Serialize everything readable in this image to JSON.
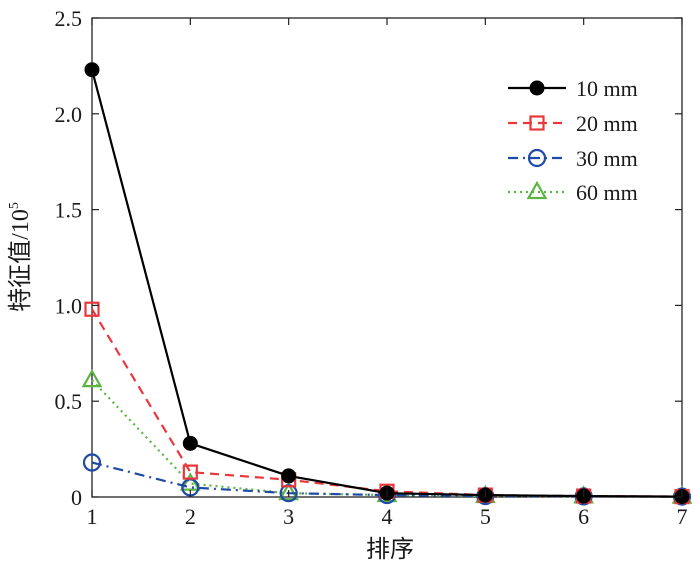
{
  "chart_data": {
    "type": "line",
    "title": "",
    "xlabel": "排序",
    "ylabel": "特征值/10",
    "ylabel_superscript": "5",
    "x": [
      1,
      2,
      3,
      4,
      5,
      6,
      7
    ],
    "xlim": [
      1,
      7
    ],
    "ylim": [
      0,
      2.5
    ],
    "xticks": [
      "1",
      "2",
      "3",
      "4",
      "5",
      "6",
      "7"
    ],
    "yticks": [
      "0",
      "0.5",
      "1.0",
      "1.5",
      "2.0",
      "2.5"
    ],
    "grid": false,
    "legend_position": "top-right",
    "series": [
      {
        "name": "10 mm",
        "values": [
          2.23,
          0.28,
          0.11,
          0.02,
          0.01,
          0.005,
          0.002
        ],
        "color": "#000000",
        "dash": "solid",
        "marker": "circle-filled"
      },
      {
        "name": "20 mm",
        "values": [
          0.98,
          0.13,
          0.09,
          0.03,
          0.01,
          0.005,
          0.002
        ],
        "color": "#e8383d",
        "dash": "dashed",
        "marker": "square-open"
      },
      {
        "name": "30 mm",
        "values": [
          0.18,
          0.05,
          0.02,
          0.01,
          0.005,
          0.003,
          0.002
        ],
        "color": "#1f4aa8",
        "dash": "dashdot",
        "marker": "circle-open"
      },
      {
        "name": "60 mm",
        "values": [
          0.61,
          0.07,
          0.02,
          0.01,
          0.005,
          0.003,
          0.002
        ],
        "color": "#5cb443",
        "dash": "dotted",
        "marker": "triangle-open"
      }
    ]
  }
}
